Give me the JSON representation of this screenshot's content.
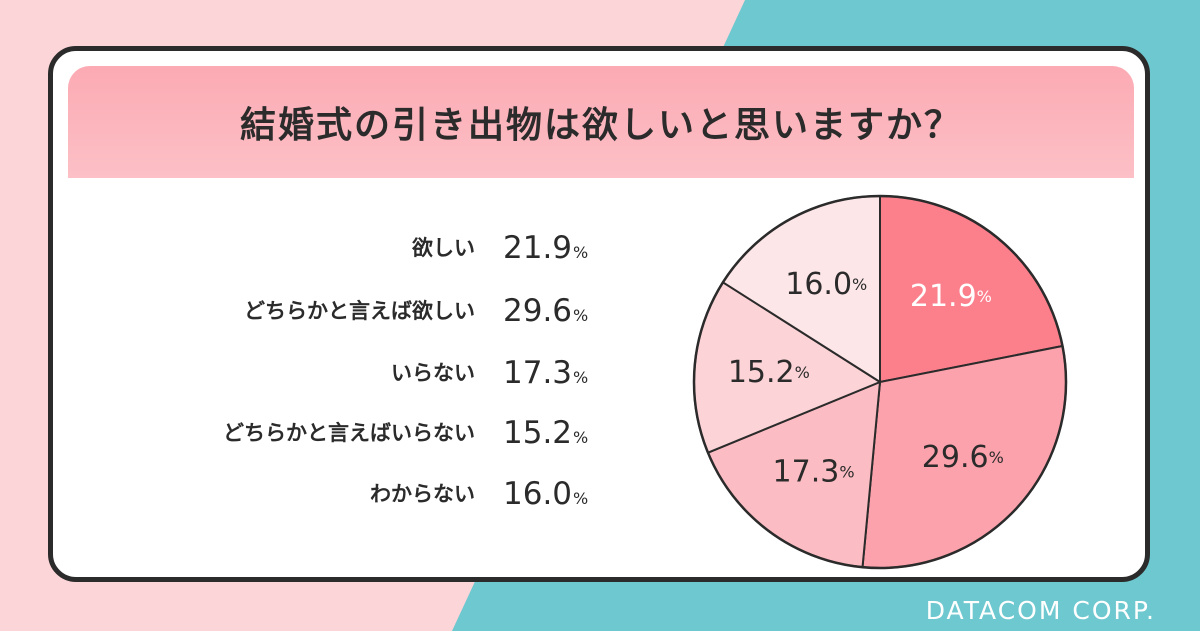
{
  "title": "結婚式の引き出物は欲しいと思いますか？",
  "credit": "DATACOM CORP.",
  "colors": {
    "background_left": "#fcd5d8",
    "background_right": "#6ec8cf",
    "card_border": "#2b2b2b",
    "title_band": "#fcb4bc",
    "slices": [
      "#fc7f8c",
      "#fca2ac",
      "#fcbcc3",
      "#fcd3d7",
      "#fde6e8"
    ]
  },
  "legend": [
    {
      "label": "欲しい",
      "value": "21.9",
      "unit": "%"
    },
    {
      "label": "どちらかと言えば欲しい",
      "value": "29.6",
      "unit": "%"
    },
    {
      "label": "いらない",
      "value": "17.3",
      "unit": "%"
    },
    {
      "label": "どちらかと言えばいらない",
      "value": "15.2",
      "unit": "%"
    },
    {
      "label": "わからない",
      "value": "16.0",
      "unit": "%"
    }
  ],
  "chart_data": {
    "type": "pie",
    "title": "結婚式の引き出物は欲しいと思いますか？",
    "categories": [
      "欲しい",
      "どちらかと言えば欲しい",
      "いらない",
      "どちらかと言えばいらない",
      "わからない"
    ],
    "values": [
      21.9,
      29.6,
      17.3,
      15.2,
      16.0
    ],
    "value_labels": [
      "21.9",
      "29.6",
      "17.3",
      "15.2",
      "16.0"
    ],
    "unit": "%",
    "start": "12 o'clock",
    "direction": "clockwise"
  }
}
